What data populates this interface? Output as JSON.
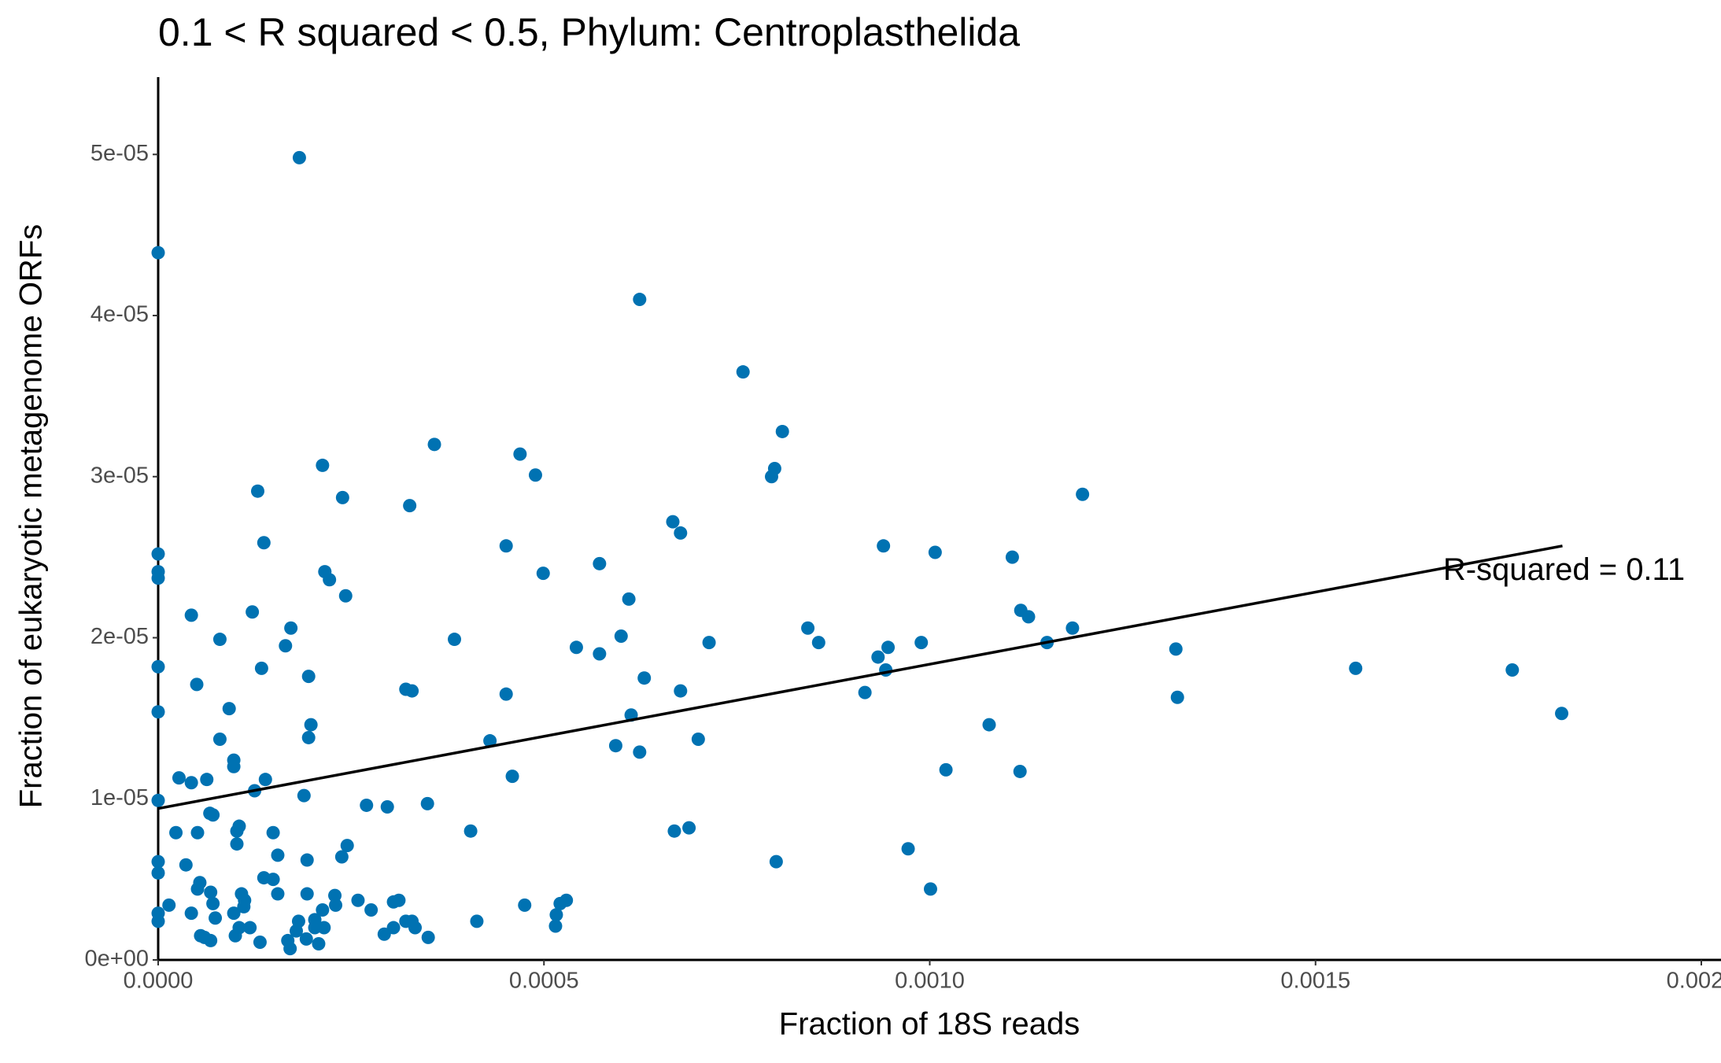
{
  "chart_data": {
    "type": "scatter",
    "title": "0.1 < R squared < 0.5, Phylum:  Centroplasthelida",
    "xlabel": "Fraction of 18S reads",
    "ylabel": "Fraction of eukaryotic metagenome ORFs",
    "color": "#0072b2",
    "xlim": [
      0,
      0.002
    ],
    "ylim": [
      0,
      5.48e-05
    ],
    "xticks": [
      {
        "value": 0,
        "label": "0.0000"
      },
      {
        "value": 0.0005,
        "label": "0.0005"
      },
      {
        "value": 0.001,
        "label": "0.0010"
      },
      {
        "value": 0.0015,
        "label": "0.0015"
      },
      {
        "value": 0.002,
        "label": "0.0020"
      }
    ],
    "yticks": [
      {
        "value": 0,
        "label": "0e+00"
      },
      {
        "value": 1e-05,
        "label": "1e-05"
      },
      {
        "value": 2e-05,
        "label": "2e-05"
      },
      {
        "value": 3e-05,
        "label": "3e-05"
      },
      {
        "value": 4e-05,
        "label": "4e-05"
      },
      {
        "value": 5e-05,
        "label": "5e-05"
      }
    ],
    "x": [
      0.000183,
      0,
      0.000624,
      0.000758,
      0.000809,
      0.000358,
      0.000469,
      0.000213,
      0.000799,
      0.000795,
      0.000489,
      0.000129,
      0.000239,
      0.001198,
      0.000326,
      0.000667,
      0.000677,
      0,
      0.000137,
      0.000451,
      0.00094,
      0.001007,
      0.001107,
      0.000572,
      0,
      0,
      0.000216,
      0.000222,
      0.000499,
      0.000243,
      0.00061,
      4.3e-05,
      0.000122,
      0.001118,
      0.001128,
      0.000172,
      0.000842,
      0.001185,
      8e-05,
      0.000384,
      0.0006,
      0.000714,
      0.000856,
      0.000989,
      0.001152,
      0.000165,
      0.000542,
      0.000572,
      0.000946,
      0.001319,
      0.000933,
      0,
      0.000134,
      0.001552,
      0.000943,
      0.001755,
      0.000195,
      0.00063,
      5e-05,
      0.000321,
      0.000329,
      0.000677,
      0.000451,
      0.000916,
      0.001321,
      9.2e-05,
      0,
      0.000613,
      0.001819,
      0.000198,
      0.001077,
      0.000195,
      8e-05,
      0.0007,
      0.00043,
      0.000593,
      0.000624,
      9.8e-05,
      9.8e-05,
      0.001021,
      0.001117,
      2.7e-05,
      0.000459,
      0.000139,
      4.3e-05,
      6.3e-05,
      0.000125,
      0.000189,
      0,
      0.00027,
      0.000297,
      0.000349,
      6.7e-05,
      7.1e-05,
      0.000105,
      0.000102,
      0.000102,
      2.3e-05,
      5.1e-05,
      0.000149,
      0.000405,
      0.000669,
      0.000688,
      0.000245,
      0.000972,
      0.000155,
      0.000238,
      0,
      0,
      3.6e-05,
      0.000193,
      0.000801,
      0.000137,
      0.000149,
      5.4e-05,
      5.1e-05,
      6.8e-05,
      0.000108,
      0.000155,
      0.000193,
      0.000229,
      0.001001,
      0.000112,
      0.000259,
      0.000305,
      0.000312,
      0.000529,
      0.000521,
      1.4e-05,
      7.1e-05,
      0.000111,
      0.000475,
      0.00023,
      0.000213,
      0.000276,
      4.3e-05,
      9.8e-05,
      0,
      0.000516,
      7.4e-05,
      0,
      0.000182,
      0.000203,
      0.000321,
      0.000329,
      0.000413,
      0.000119,
      0.000105,
      0.000203,
      0.000215,
      0.000333,
      0.000305,
      0.000515,
      0.000179,
      0.000293,
      0.0001,
      5.5e-05,
      6.8e-05,
      6e-05,
      0.000192,
      0.00035,
      0.000132,
      0.000168,
      0.000208,
      0.000171
    ],
    "y": [
      4.98e-05,
      4.39e-05,
      4.1e-05,
      3.65e-05,
      3.28e-05,
      3.2e-05,
      3.14e-05,
      3.07e-05,
      3.05e-05,
      3e-05,
      3.01e-05,
      2.91e-05,
      2.87e-05,
      2.89e-05,
      2.82e-05,
      2.72e-05,
      2.65e-05,
      2.52e-05,
      2.59e-05,
      2.57e-05,
      2.57e-05,
      2.53e-05,
      2.5e-05,
      2.46e-05,
      2.41e-05,
      2.37e-05,
      2.41e-05,
      2.36e-05,
      2.4e-05,
      2.26e-05,
      2.24e-05,
      2.14e-05,
      2.16e-05,
      2.17e-05,
      2.13e-05,
      2.06e-05,
      2.06e-05,
      2.06e-05,
      1.99e-05,
      1.99e-05,
      2.01e-05,
      1.97e-05,
      1.97e-05,
      1.97e-05,
      1.97e-05,
      1.95e-05,
      1.94e-05,
      1.9e-05,
      1.94e-05,
      1.93e-05,
      1.88e-05,
      1.82e-05,
      1.81e-05,
      1.81e-05,
      1.8e-05,
      1.8e-05,
      1.76e-05,
      1.75e-05,
      1.71e-05,
      1.68e-05,
      1.67e-05,
      1.67e-05,
      1.65e-05,
      1.66e-05,
      1.63e-05,
      1.56e-05,
      1.54e-05,
      1.52e-05,
      1.53e-05,
      1.46e-05,
      1.46e-05,
      1.38e-05,
      1.37e-05,
      1.37e-05,
      1.36e-05,
      1.33e-05,
      1.29e-05,
      1.24e-05,
      1.2e-05,
      1.18e-05,
      1.17e-05,
      1.13e-05,
      1.14e-05,
      1.12e-05,
      1.1e-05,
      1.12e-05,
      1.05e-05,
      1.02e-05,
      9.9e-06,
      9.6e-06,
      9.5e-06,
      9.7e-06,
      9.1e-06,
      9e-06,
      8.3e-06,
      8e-06,
      7.2e-06,
      7.9e-06,
      7.9e-06,
      7.9e-06,
      8e-06,
      8e-06,
      8.2e-06,
      7.1e-06,
      6.9e-06,
      6.5e-06,
      6.4e-06,
      6.1e-06,
      5.4e-06,
      5.9e-06,
      6.2e-06,
      6.1e-06,
      5.1e-06,
      5e-06,
      4.8e-06,
      4.4e-06,
      4.2e-06,
      4.1e-06,
      4.1e-06,
      4.1e-06,
      4e-06,
      4.4e-06,
      3.7e-06,
      3.7e-06,
      3.6e-06,
      3.7e-06,
      3.7e-06,
      3.5e-06,
      3.4e-06,
      3.5e-06,
      3.3e-06,
      3.4e-06,
      3.4e-06,
      3.1e-06,
      3.1e-06,
      2.9e-06,
      2.9e-06,
      2.9e-06,
      2.8e-06,
      2.6e-06,
      2.4e-06,
      2.4e-06,
      2.5e-06,
      2.4e-06,
      2.4e-06,
      2.4e-06,
      2e-06,
      2e-06,
      2e-06,
      2e-06,
      2e-06,
      2e-06,
      2.1e-06,
      1.8e-06,
      1.6e-06,
      1.5e-06,
      1.5e-06,
      1.2e-06,
      1.4e-06,
      1.3e-06,
      1.4e-06,
      1.1e-06,
      1.2e-06,
      1e-06,
      7e-07
    ],
    "fit_line": {
      "color": "#000000",
      "x": [
        0,
        0.00182
      ],
      "y": [
        9.4e-06,
        2.57e-05
      ]
    },
    "annotation": {
      "text": "R-squared =  0.11",
      "x": 0.001822,
      "y": 2.41e-05
    }
  }
}
